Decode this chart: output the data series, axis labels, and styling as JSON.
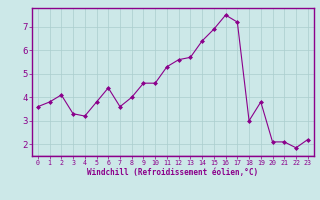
{
  "x": [
    0,
    1,
    2,
    3,
    4,
    5,
    6,
    7,
    8,
    9,
    10,
    11,
    12,
    13,
    14,
    15,
    16,
    17,
    18,
    19,
    20,
    21,
    22,
    23
  ],
  "y": [
    3.6,
    3.8,
    4.1,
    3.3,
    3.2,
    3.8,
    4.4,
    3.6,
    4.0,
    4.6,
    4.6,
    5.3,
    5.6,
    5.7,
    6.4,
    6.9,
    7.5,
    7.2,
    3.0,
    3.8,
    2.1,
    2.1,
    1.85,
    2.2
  ],
  "line_color": "#8B008B",
  "marker": "D",
  "marker_size": 2.0,
  "bg_color": "#cce8e8",
  "grid_color": "#aacece",
  "xlabel": "Windchill (Refroidissement éolien,°C)",
  "xlim": [
    -0.5,
    23.5
  ],
  "ylim": [
    1.5,
    7.8
  ],
  "yticks": [
    2,
    3,
    4,
    5,
    6,
    7
  ],
  "xticks": [
    0,
    1,
    2,
    3,
    4,
    5,
    6,
    7,
    8,
    9,
    10,
    11,
    12,
    13,
    14,
    15,
    16,
    17,
    18,
    19,
    20,
    21,
    22,
    23
  ],
  "axis_color": "#8B008B",
  "tick_color": "#8B008B",
  "label_color": "#8B008B",
  "tick_fontsize": 4.8,
  "label_fontsize": 5.5,
  "ytick_fontsize": 6.5
}
